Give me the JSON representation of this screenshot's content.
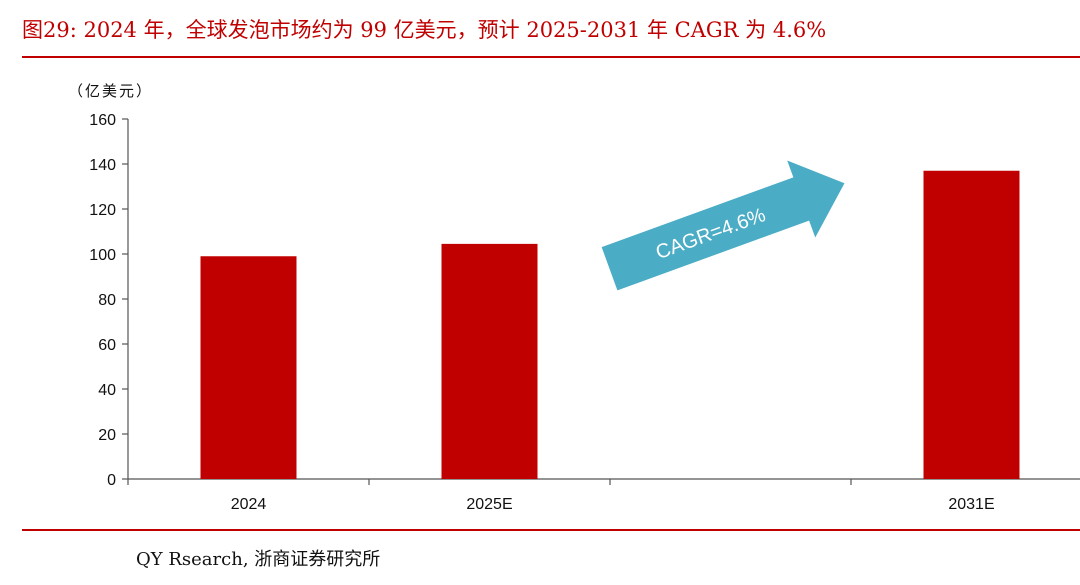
{
  "figure": {
    "title": "图29:  2024 年，全球发泡市场约为 99 亿美元，预计 2025-2031 年 CAGR 为 4.6%",
    "unit_label": "（亿美元）",
    "source": "QY Rsearch, 浙商证券研究所"
  },
  "colors": {
    "title": "#c00000",
    "bar": "#c00000",
    "arrow": "#4bacc6",
    "axis": "#555555"
  },
  "chart_data": {
    "type": "bar",
    "categories": [
      "2024",
      "2025E",
      "",
      "2031E"
    ],
    "values": [
      99,
      104.5,
      null,
      137
    ],
    "ylim": [
      0,
      160
    ],
    "yticks": [
      0,
      20,
      40,
      60,
      80,
      100,
      120,
      140,
      160
    ],
    "grid": false,
    "annotations": [
      {
        "text": "CAGR=4.6%",
        "shape": "arrow",
        "from_category": "2025E",
        "to_category": "2031E"
      }
    ]
  }
}
